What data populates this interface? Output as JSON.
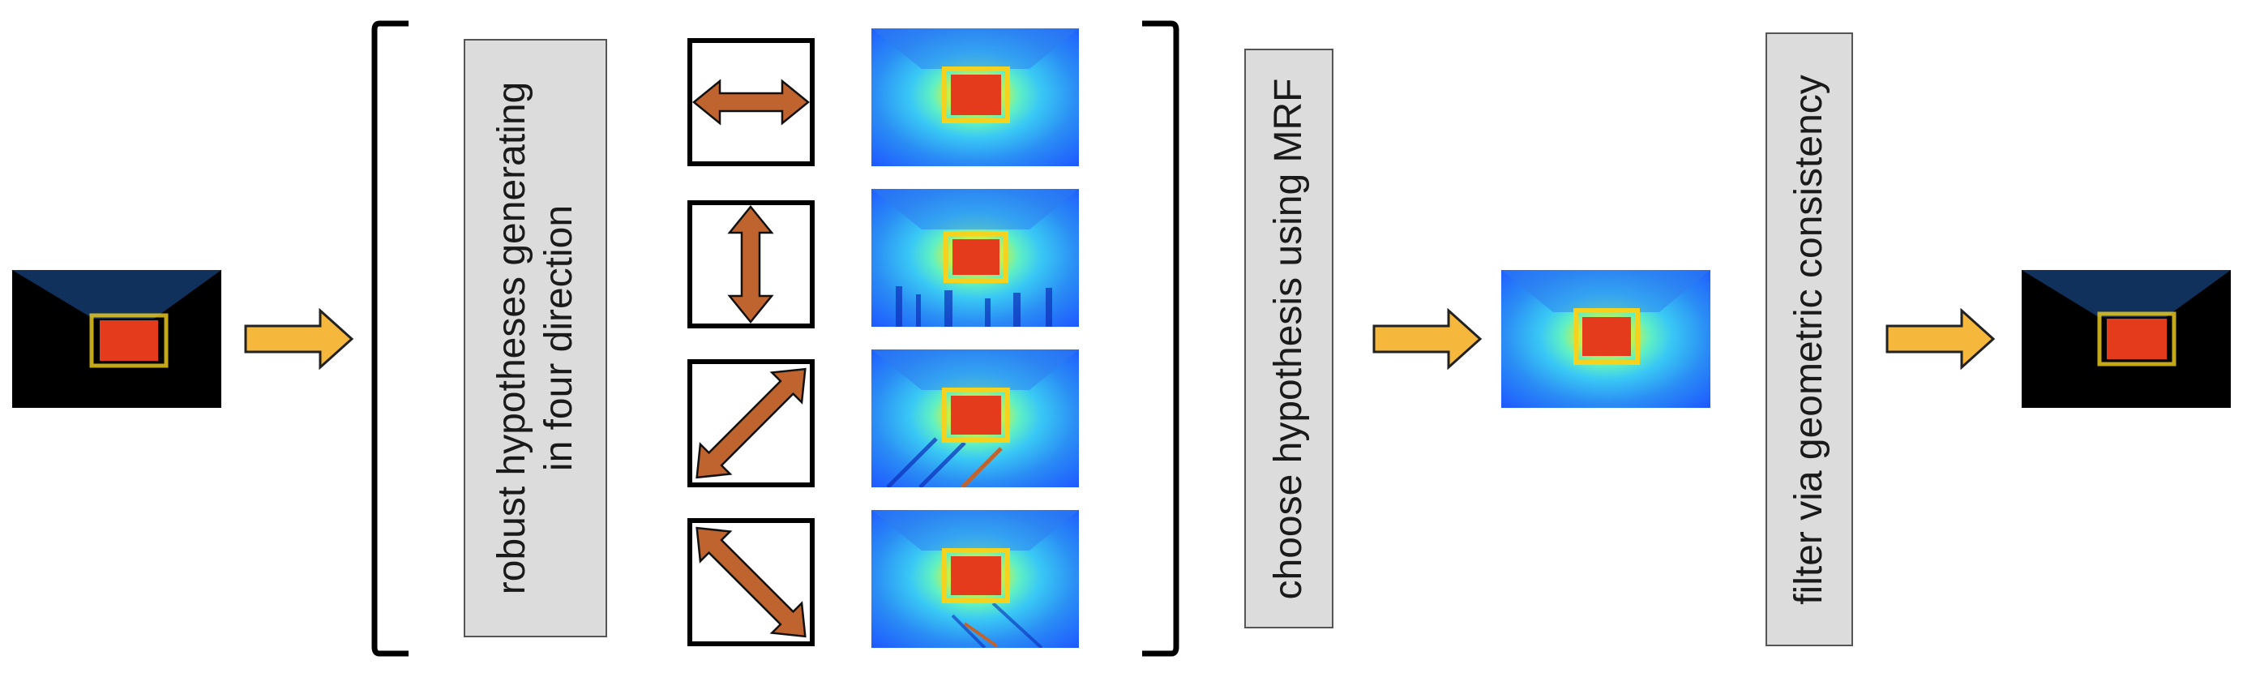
{
  "steps": {
    "hypotheses_label_line1": "robust hypotheses generating",
    "hypotheses_label_line2": "in four direction",
    "mrf_label": "choose hypothesis using MRF",
    "filter_label": "filter via geometric consistency"
  },
  "directions": [
    "horizontal",
    "vertical",
    "diagonal-up-right",
    "diagonal-down-right"
  ],
  "colors": {
    "flow_arrow": "#f5b83d",
    "direction_arrow": "#c0642f",
    "label_box": "#dcdcdc",
    "depth_low": "#1f6fff",
    "depth_mid": "#39c8f5",
    "depth_high": "#e53b1d"
  },
  "icons": {
    "flow_arrow": "arrow-right-icon",
    "direction_arrow": "double-arrow-icon"
  }
}
